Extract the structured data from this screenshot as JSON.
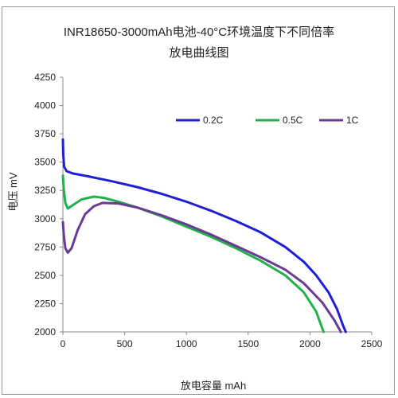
{
  "chart_data": {
    "type": "line",
    "title": "INR18650-3000mAh电池-40°C环境温度下不同倍率",
    "subtitle": "放电曲线图",
    "xlabel": "放电容量 mAh",
    "ylabel": "电压 mV",
    "xlim": [
      0,
      2500
    ],
    "ylim": [
      2000,
      4250
    ],
    "x_ticks": [
      0,
      500,
      1000,
      1500,
      2000,
      2500
    ],
    "y_ticks": [
      2000,
      2250,
      2500,
      2750,
      3000,
      3250,
      3500,
      3750,
      4000,
      4250
    ],
    "grid": false,
    "legend_position": "top-right",
    "series": [
      {
        "name": "0.2C",
        "color": "#1f1fd6",
        "points": [
          [
            0,
            3700
          ],
          [
            3,
            3560
          ],
          [
            10,
            3460
          ],
          [
            30,
            3420
          ],
          [
            80,
            3400
          ],
          [
            200,
            3375
          ],
          [
            400,
            3330
          ],
          [
            600,
            3280
          ],
          [
            800,
            3220
          ],
          [
            1000,
            3150
          ],
          [
            1200,
            3070
          ],
          [
            1400,
            2980
          ],
          [
            1600,
            2880
          ],
          [
            1800,
            2750
          ],
          [
            1950,
            2620
          ],
          [
            2050,
            2500
          ],
          [
            2150,
            2350
          ],
          [
            2220,
            2200
          ],
          [
            2270,
            2050
          ],
          [
            2290,
            2000
          ]
        ]
      },
      {
        "name": "0.5C",
        "color": "#22b04a",
        "points": [
          [
            0,
            3380
          ],
          [
            8,
            3250
          ],
          [
            20,
            3140
          ],
          [
            40,
            3090
          ],
          [
            80,
            3120
          ],
          [
            150,
            3170
          ],
          [
            250,
            3195
          ],
          [
            330,
            3185
          ],
          [
            450,
            3150
          ],
          [
            600,
            3100
          ],
          [
            800,
            3020
          ],
          [
            1000,
            2930
          ],
          [
            1200,
            2840
          ],
          [
            1400,
            2740
          ],
          [
            1600,
            2630
          ],
          [
            1800,
            2500
          ],
          [
            1950,
            2350
          ],
          [
            2050,
            2180
          ],
          [
            2110,
            2000
          ]
        ]
      },
      {
        "name": "1C",
        "color": "#6b3a96",
        "points": [
          [
            0,
            2970
          ],
          [
            8,
            2850
          ],
          [
            20,
            2740
          ],
          [
            40,
            2700
          ],
          [
            70,
            2740
          ],
          [
            120,
            2900
          ],
          [
            180,
            3040
          ],
          [
            250,
            3110
          ],
          [
            320,
            3140
          ],
          [
            450,
            3135
          ],
          [
            600,
            3100
          ],
          [
            800,
            3030
          ],
          [
            1000,
            2950
          ],
          [
            1200,
            2860
          ],
          [
            1400,
            2760
          ],
          [
            1600,
            2660
          ],
          [
            1800,
            2550
          ],
          [
            1950,
            2430
          ],
          [
            2100,
            2260
          ],
          [
            2200,
            2100
          ],
          [
            2250,
            2000
          ]
        ]
      }
    ]
  }
}
